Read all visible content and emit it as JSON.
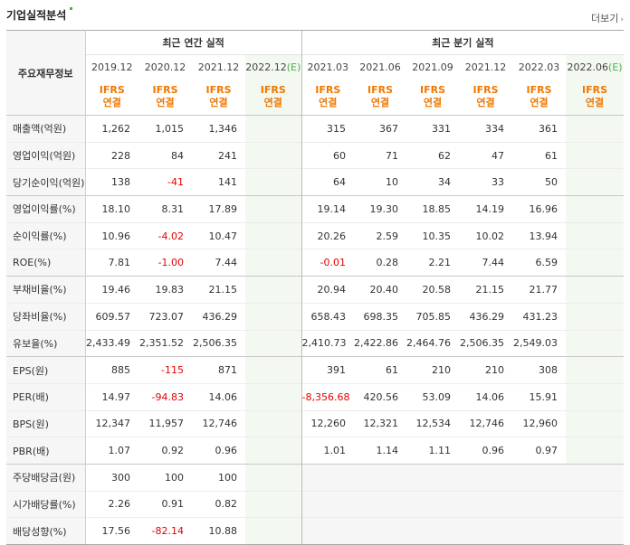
{
  "header": {
    "title": "기업실적분석",
    "more_label": "더보기"
  },
  "table": {
    "label_header": "주요재무정보",
    "group_annual": "최근 연간 실적",
    "group_quarter": "최근 분기 실적",
    "periods": [
      {
        "date": "2019.12",
        "est": ""
      },
      {
        "date": "2020.12",
        "est": ""
      },
      {
        "date": "2021.12",
        "est": ""
      },
      {
        "date": "2022.12",
        "est": "(E)"
      },
      {
        "date": "2021.03",
        "est": ""
      },
      {
        "date": "2021.06",
        "est": ""
      },
      {
        "date": "2021.09",
        "est": ""
      },
      {
        "date": "2021.12",
        "est": ""
      },
      {
        "date": "2022.03",
        "est": ""
      },
      {
        "date": "2022.06",
        "est": "(E)"
      }
    ],
    "ifrs_line1": "IFRS",
    "ifrs_line2": "연결",
    "rows": [
      {
        "label": "매출액(억원)",
        "values": [
          "1,262",
          "1,015",
          "1,346",
          "",
          "315",
          "367",
          "331",
          "334",
          "361",
          ""
        ]
      },
      {
        "label": "영업이익(억원)",
        "values": [
          "228",
          "84",
          "241",
          "",
          "60",
          "71",
          "62",
          "47",
          "61",
          ""
        ]
      },
      {
        "label": "당기순이익(억원)",
        "values": [
          "138",
          "-41",
          "141",
          "",
          "64",
          "10",
          "34",
          "33",
          "50",
          ""
        ]
      },
      {
        "label": "영업이익률(%)",
        "values": [
          "18.10",
          "8.31",
          "17.89",
          "",
          "19.14",
          "19.30",
          "18.85",
          "14.19",
          "16.96",
          ""
        ]
      },
      {
        "label": "순이익률(%)",
        "values": [
          "10.96",
          "-4.02",
          "10.47",
          "",
          "20.26",
          "2.59",
          "10.35",
          "10.02",
          "13.94",
          ""
        ]
      },
      {
        "label": "ROE(%)",
        "values": [
          "7.81",
          "-1.00",
          "7.44",
          "",
          "-0.01",
          "0.28",
          "2.21",
          "7.44",
          "6.59",
          ""
        ]
      },
      {
        "label": "부채비율(%)",
        "values": [
          "19.46",
          "19.83",
          "21.15",
          "",
          "20.94",
          "20.40",
          "20.58",
          "21.15",
          "21.77",
          ""
        ]
      },
      {
        "label": "당좌비율(%)",
        "values": [
          "609.57",
          "723.07",
          "436.29",
          "",
          "658.43",
          "698.35",
          "705.85",
          "436.29",
          "431.23",
          ""
        ]
      },
      {
        "label": "유보율(%)",
        "values": [
          "2,433.49",
          "2,351.52",
          "2,506.35",
          "",
          "2,410.73",
          "2,422.86",
          "2,464.76",
          "2,506.35",
          "2,549.03",
          ""
        ]
      },
      {
        "label": "EPS(원)",
        "values": [
          "885",
          "-115",
          "871",
          "",
          "391",
          "61",
          "210",
          "210",
          "308",
          ""
        ]
      },
      {
        "label": "PER(배)",
        "values": [
          "14.97",
          "-94.83",
          "14.06",
          "",
          "-8,356.68",
          "420.56",
          "53.09",
          "14.06",
          "15.91",
          ""
        ]
      },
      {
        "label": "BPS(원)",
        "values": [
          "12,347",
          "11,957",
          "12,746",
          "",
          "12,260",
          "12,321",
          "12,534",
          "12,746",
          "12,960",
          ""
        ]
      },
      {
        "label": "PBR(배)",
        "values": [
          "1.07",
          "0.92",
          "0.96",
          "",
          "1.01",
          "1.14",
          "1.11",
          "0.96",
          "0.97",
          ""
        ]
      },
      {
        "label": "주당배당금(원)",
        "values": [
          "300",
          "100",
          "100",
          "",
          "",
          "",
          "",
          "",
          "",
          ""
        ]
      },
      {
        "label": "시가배당률(%)",
        "values": [
          "2.26",
          "0.91",
          "0.82",
          "",
          "",
          "",
          "",
          "",
          "",
          ""
        ]
      },
      {
        "label": "배당성향(%)",
        "values": [
          "17.56",
          "-82.14",
          "10.88",
          "",
          "",
          "",
          "",
          "",
          "",
          ""
        ]
      }
    ]
  }
}
